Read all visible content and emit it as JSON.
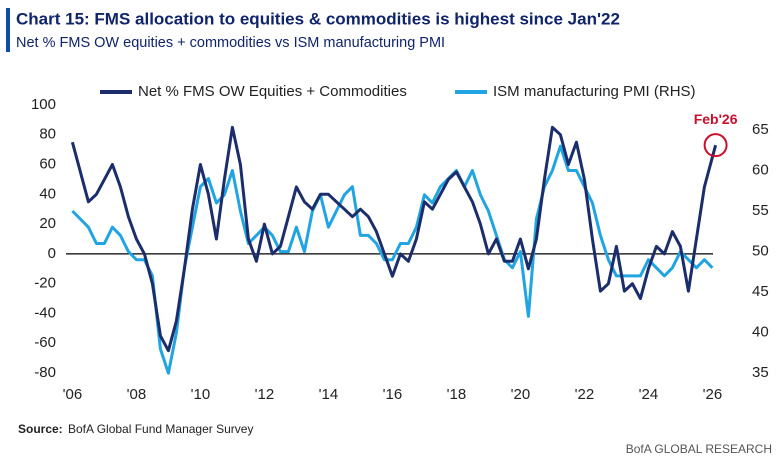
{
  "title": "Chart 15: FMS allocation to equities & commodities is highest since Jan'22",
  "subtitle": "Net % FMS OW equities + commodities vs ISM manufacturing PMI",
  "source_label": "Source:",
  "source": "BofA Global Fund Manager Survey",
  "brand": "BofA GLOBAL RESEARCH",
  "chart_data": {
    "type": "line",
    "annotation": "Feb'26",
    "series": [
      {
        "name": "Net % FMS OW Equities + Commodities",
        "color": "#1b2d6b",
        "x": [
          2006,
          2006.25,
          2006.5,
          2006.75,
          2007,
          2007.25,
          2007.5,
          2007.75,
          2008,
          2008.25,
          2008.5,
          2008.75,
          2009,
          2009.25,
          2009.5,
          2009.75,
          2010,
          2010.25,
          2010.5,
          2010.75,
          2011,
          2011.25,
          2011.5,
          2011.75,
          2012,
          2012.25,
          2012.5,
          2012.75,
          2013,
          2013.25,
          2013.5,
          2013.75,
          2014,
          2014.25,
          2014.5,
          2014.75,
          2015,
          2015.25,
          2015.5,
          2015.75,
          2016,
          2016.25,
          2016.5,
          2016.75,
          2017,
          2017.25,
          2017.5,
          2017.75,
          2018,
          2018.25,
          2018.5,
          2018.75,
          2019,
          2019.25,
          2019.5,
          2019.75,
          2020,
          2020.25,
          2020.5,
          2020.75,
          2021,
          2021.25,
          2021.5,
          2021.75,
          2022,
          2022.25,
          2022.5,
          2022.75,
          2023,
          2023.25,
          2023.5,
          2023.75,
          2024,
          2024.25,
          2024.5,
          2024.75,
          2025,
          2025.25,
          2025.5,
          2025.75,
          2026,
          2026.1
        ],
        "values": [
          75,
          55,
          35,
          40,
          50,
          60,
          45,
          25,
          10,
          0,
          -20,
          -55,
          -65,
          -45,
          -10,
          30,
          60,
          40,
          10,
          50,
          85,
          60,
          10,
          -5,
          20,
          0,
          5,
          25,
          45,
          35,
          30,
          40,
          40,
          35,
          30,
          25,
          30,
          25,
          15,
          0,
          -15,
          0,
          -5,
          10,
          35,
          30,
          40,
          50,
          55,
          45,
          35,
          20,
          0,
          10,
          -5,
          -5,
          10,
          -10,
          10,
          50,
          85,
          80,
          60,
          75,
          50,
          10,
          -25,
          -20,
          5,
          -25,
          -20,
          -30,
          -10,
          5,
          0,
          15,
          5,
          -25,
          10,
          45,
          65,
          73
        ]
      },
      {
        "name": "ISM manufacturing PMI (RHS)",
        "color": "#21a4e2",
        "axis": "y2",
        "x": [
          2006,
          2006.25,
          2006.5,
          2006.75,
          2007,
          2007.25,
          2007.5,
          2007.75,
          2008,
          2008.25,
          2008.5,
          2008.75,
          2009,
          2009.25,
          2009.5,
          2009.75,
          2010,
          2010.25,
          2010.5,
          2010.75,
          2011,
          2011.25,
          2011.5,
          2011.75,
          2012,
          2012.25,
          2012.5,
          2012.75,
          2013,
          2013.25,
          2013.5,
          2013.75,
          2014,
          2014.25,
          2014.5,
          2014.75,
          2015,
          2015.25,
          2015.5,
          2015.75,
          2016,
          2016.25,
          2016.5,
          2016.75,
          2017,
          2017.25,
          2017.5,
          2017.75,
          2018,
          2018.25,
          2018.5,
          2018.75,
          2019,
          2019.25,
          2019.5,
          2019.75,
          2020,
          2020.25,
          2020.5,
          2020.75,
          2021,
          2021.25,
          2021.5,
          2021.75,
          2022,
          2022.25,
          2022.5,
          2022.75,
          2023,
          2023.25,
          2023.5,
          2023.75,
          2024,
          2024.25,
          2024.5,
          2024.75,
          2025,
          2025.25,
          2025.5,
          2025.75,
          2026
        ],
        "values": [
          55,
          54,
          53,
          51,
          51,
          53,
          52,
          50,
          49,
          49,
          47,
          38,
          35,
          40,
          48,
          53,
          58,
          59,
          56,
          57,
          60,
          55,
          51,
          52,
          53,
          52,
          50,
          50,
          53,
          50,
          55,
          57,
          53,
          55,
          57,
          58,
          52,
          52,
          51,
          49,
          49,
          51,
          51,
          53,
          57,
          56,
          58,
          59,
          60,
          58,
          60,
          57,
          55,
          52,
          49,
          48,
          50,
          42,
          54,
          58,
          60,
          63,
          60,
          60,
          58,
          56,
          52,
          49,
          47,
          47,
          47,
          47,
          49,
          48,
          47,
          48,
          50,
          49,
          48,
          49,
          48
        ]
      }
    ],
    "xlim": [
      2005.8,
      2026.8
    ],
    "xticks": [
      {
        "value": 2006,
        "label": "'06"
      },
      {
        "value": 2008,
        "label": "'08"
      },
      {
        "value": 2010,
        "label": "'10"
      },
      {
        "value": 2012,
        "label": "'12"
      },
      {
        "value": 2014,
        "label": "'14"
      },
      {
        "value": 2016,
        "label": "'16"
      },
      {
        "value": 2018,
        "label": "'18"
      },
      {
        "value": 2020,
        "label": "'20"
      },
      {
        "value": 2022,
        "label": "'22"
      },
      {
        "value": 2024,
        "label": "'24"
      },
      {
        "value": 2026,
        "label": "'26"
      }
    ],
    "ylim": [
      -85,
      105
    ],
    "yticks": [
      -80,
      -60,
      -40,
      -20,
      0,
      20,
      40,
      60,
      80,
      100
    ],
    "y2lim": [
      34.1,
      69.0
    ],
    "y2ticks": [
      35,
      40,
      45,
      50,
      55,
      60,
      65
    ],
    "legend": "top"
  }
}
